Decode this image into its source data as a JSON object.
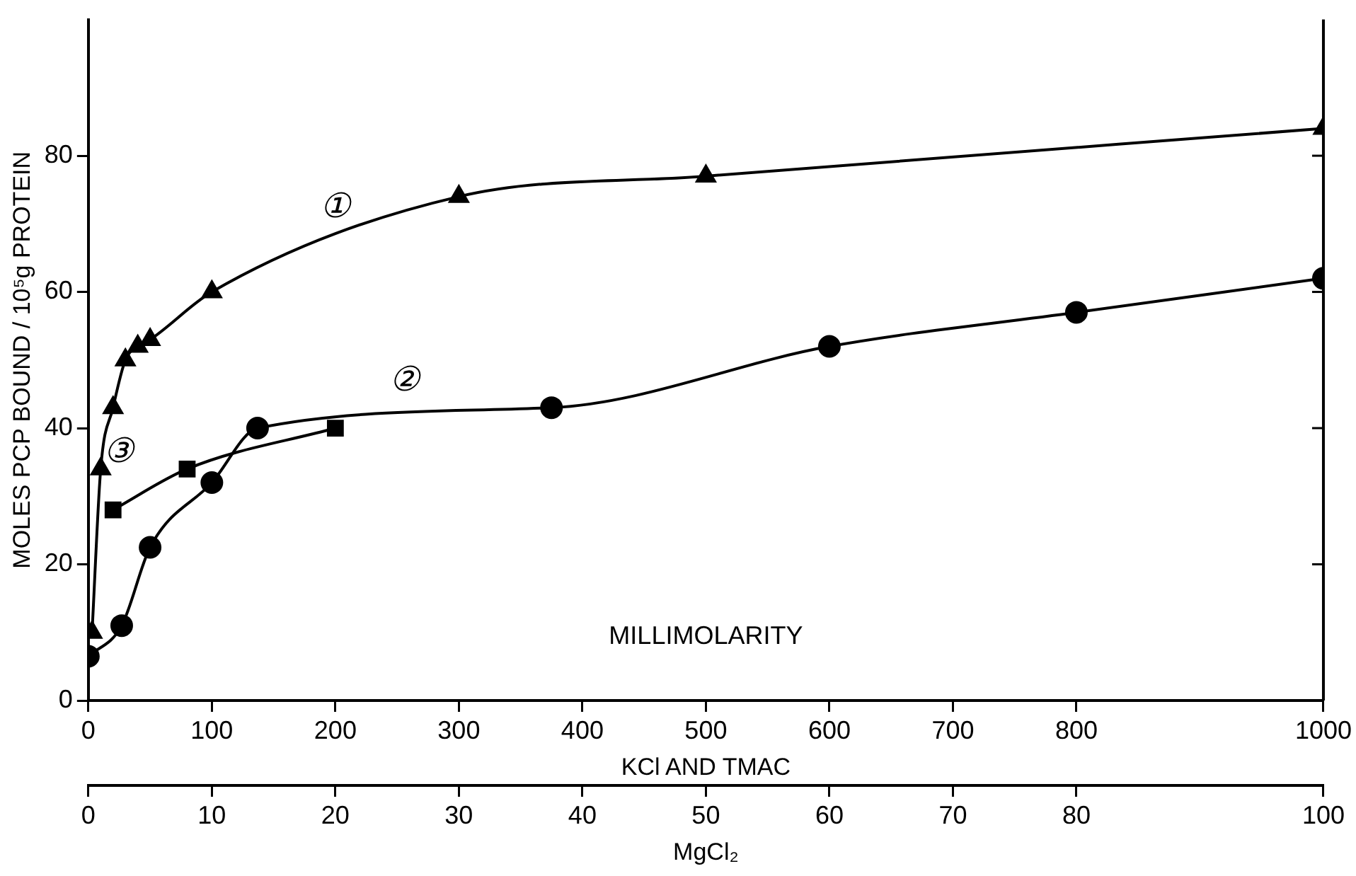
{
  "chart_data": {
    "type": "line",
    "xlabel": "KCl AND TMAC",
    "ylabel": "MOLES PCP BOUND / 10⁵g PROTEIN",
    "x2label": "MgCl₂",
    "xlim": [
      0,
      1000
    ],
    "xticks": [
      0,
      100,
      200,
      300,
      400,
      500,
      600,
      700,
      800,
      1000
    ],
    "x2lim": [
      0,
      100
    ],
    "x2ticks": [
      0,
      10,
      20,
      30,
      40,
      50,
      60,
      70,
      80,
      100
    ],
    "ylim": [
      0,
      100
    ],
    "yticks": [
      0,
      20,
      40,
      60,
      80
    ],
    "grid": false,
    "legend": false,
    "line_style": "solid",
    "series": [
      {
        "name": "①",
        "color": "#000000",
        "marker": "triangle",
        "x": [
          3,
          10,
          20,
          30,
          40,
          50,
          100,
          300,
          500,
          1000
        ],
        "values": [
          10,
          34,
          43,
          50,
          52,
          53,
          60,
          74,
          77,
          84
        ]
      },
      {
        "name": "②",
        "color": "#000000",
        "marker": "circle",
        "x": [
          0,
          27,
          50,
          100,
          137,
          375,
          600,
          800,
          1000
        ],
        "values": [
          6.5,
          11,
          22.5,
          32,
          40,
          43,
          52,
          57,
          62
        ]
      },
      {
        "name": "③",
        "color": "#000000",
        "marker": "square",
        "x": [
          20,
          80,
          200
        ],
        "values": [
          28,
          34,
          40
        ]
      }
    ],
    "annotations": [
      "MILLIMOLARITY"
    ]
  }
}
